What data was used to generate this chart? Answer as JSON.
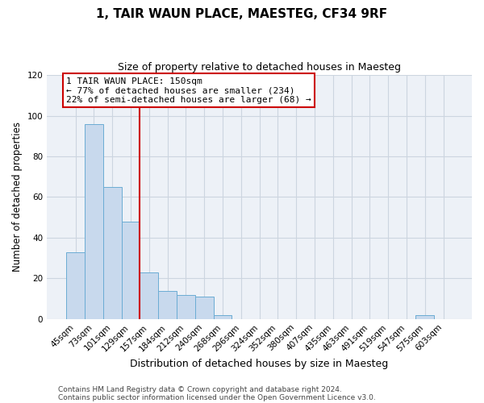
{
  "title": "1, TAIR WAUN PLACE, MAESTEG, CF34 9RF",
  "subtitle": "Size of property relative to detached houses in Maesteg",
  "xlabel": "Distribution of detached houses by size in Maesteg",
  "ylabel": "Number of detached properties",
  "bar_labels": [
    "45sqm",
    "73sqm",
    "101sqm",
    "129sqm",
    "157sqm",
    "184sqm",
    "212sqm",
    "240sqm",
    "268sqm",
    "296sqm",
    "324sqm",
    "352sqm",
    "380sqm",
    "407sqm",
    "435sqm",
    "463sqm",
    "491sqm",
    "519sqm",
    "547sqm",
    "575sqm",
    "603sqm"
  ],
  "bar_values": [
    33,
    96,
    65,
    48,
    23,
    14,
    12,
    11,
    2,
    0,
    0,
    0,
    0,
    0,
    0,
    0,
    0,
    0,
    0,
    2,
    0
  ],
  "bar_color": "#c8d9ed",
  "bar_edge_color": "#6bacd4",
  "red_line_index": 4,
  "annotation_line_color": "#cc0000",
  "annotation_box_text": "1 TAIR WAUN PLACE: 150sqm\n← 77% of detached houses are smaller (234)\n22% of semi-detached houses are larger (68) →",
  "ylim": [
    0,
    120
  ],
  "yticks": [
    0,
    20,
    40,
    60,
    80,
    100,
    120
  ],
  "grid_color": "#ccd5e0",
  "fig_bg_color": "#ffffff",
  "ax_bg_color": "#edf1f7",
  "footer_line1": "Contains HM Land Registry data © Crown copyright and database right 2024.",
  "footer_line2": "Contains public sector information licensed under the Open Government Licence v3.0."
}
